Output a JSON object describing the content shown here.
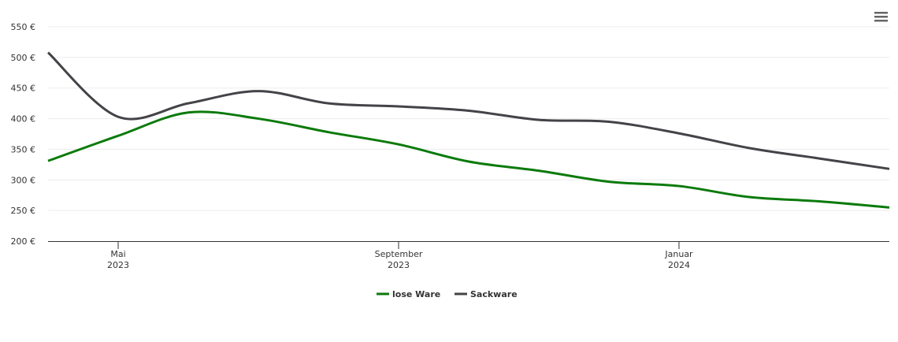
{
  "chart_data": {
    "type": "line",
    "x": [
      "2023-04",
      "2023-05",
      "2023-06",
      "2023-07",
      "2023-08",
      "2023-09",
      "2023-10",
      "2023-11",
      "2023-12",
      "2024-01",
      "2024-02",
      "2024-03",
      "2024-04"
    ],
    "xlim": [
      "2023-04",
      "2024-04"
    ],
    "xticks": [
      {
        "value": "2023-05",
        "label": "Mai 2023"
      },
      {
        "value": "2023-09",
        "label": "September 2023"
      },
      {
        "value": "2024-01",
        "label": "Januar 2024"
      }
    ],
    "ylim": [
      200,
      550
    ],
    "yticks": [
      {
        "value": 200,
        "label": "200 €"
      },
      {
        "value": 250,
        "label": "250 €"
      },
      {
        "value": 300,
        "label": "300 €"
      },
      {
        "value": 350,
        "label": "350 €"
      },
      {
        "value": 400,
        "label": "400 €"
      },
      {
        "value": 450,
        "label": "450 €"
      },
      {
        "value": 500,
        "label": "500 €"
      },
      {
        "value": 550,
        "label": "550 €"
      }
    ],
    "grid": true,
    "legend": "bottom",
    "series": [
      {
        "name": "lose Ware",
        "color": "#0b7a0b",
        "values": [
          331,
          372,
          410,
          400,
          378,
          358,
          330,
          315,
          297,
          290,
          272,
          265,
          255
        ]
      },
      {
        "name": "Sackware",
        "color": "#434348",
        "values": [
          508,
          403,
          425,
          445,
          425,
          420,
          413,
          398,
          395,
          376,
          352,
          335,
          318
        ]
      }
    ]
  }
}
